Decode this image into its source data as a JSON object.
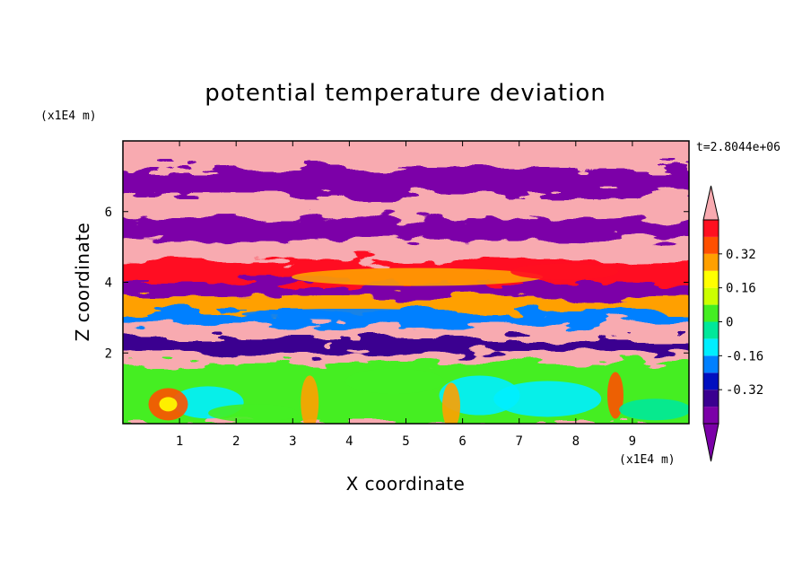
{
  "chart_data": {
    "type": "heatmap",
    "title": "potential temperature deviation",
    "xlabel": "X coordinate",
    "ylabel": "Z coordinate",
    "x_unit": "(x1E4 m)",
    "y_unit": "(x1E4 m)",
    "time_label": "t=2.8044e+06",
    "xlim": [
      0,
      10
    ],
    "ylim": [
      0,
      8
    ],
    "x_ticks": [
      1,
      2,
      3,
      4,
      5,
      6,
      7,
      8,
      9
    ],
    "y_ticks": [
      2,
      4,
      6
    ],
    "colorbar": {
      "levels": [
        -0.48,
        -0.4,
        -0.32,
        -0.24,
        -0.16,
        -0.08,
        0,
        0.08,
        0.16,
        0.24,
        0.32,
        0.4,
        0.48
      ],
      "labels": [
        "0.32",
        "0.16",
        "0",
        "-0.16",
        "-0.32"
      ],
      "label_values": [
        0.32,
        0.16,
        0,
        -0.16,
        -0.32
      ],
      "colors": [
        "#7b00a8",
        "#3a0090",
        "#0010c0",
        "#0080ff",
        "#00eeff",
        "#00e89a",
        "#44ee22",
        "#ccff00",
        "#ffff00",
        "#ffa000",
        "#ff5000",
        "#ff1020",
        "#f8aab0"
      ],
      "over_color": "#f8aab0",
      "under_color": "#7b00a8"
    },
    "layers": [
      {
        "zmin": 7.2,
        "zmax": 8.0,
        "value": 0.5
      },
      {
        "zmin": 6.5,
        "zmax": 7.2,
        "value": -0.5
      },
      {
        "zmin": 5.8,
        "zmax": 6.5,
        "value": 0.5
      },
      {
        "zmin": 5.2,
        "zmax": 5.8,
        "value": -0.5
      },
      {
        "zmin": 4.6,
        "zmax": 5.2,
        "value": 0.5
      },
      {
        "zmin": 4.0,
        "zmax": 4.6,
        "value": 0.45
      },
      {
        "zmin": 3.6,
        "zmax": 4.0,
        "value": -0.5
      },
      {
        "zmin": 3.2,
        "zmax": 3.6,
        "value": 0.3
      },
      {
        "zmin": 2.8,
        "zmax": 3.2,
        "value": -0.2
      },
      {
        "zmin": 2.4,
        "zmax": 2.8,
        "value": 0.5
      },
      {
        "zmin": 2.0,
        "zmax": 2.4,
        "value": -0.4
      },
      {
        "zmin": 1.7,
        "zmax": 2.0,
        "value": 0.5
      },
      {
        "zmin": 0.0,
        "zmax": 1.7,
        "value": 0.0
      }
    ]
  }
}
